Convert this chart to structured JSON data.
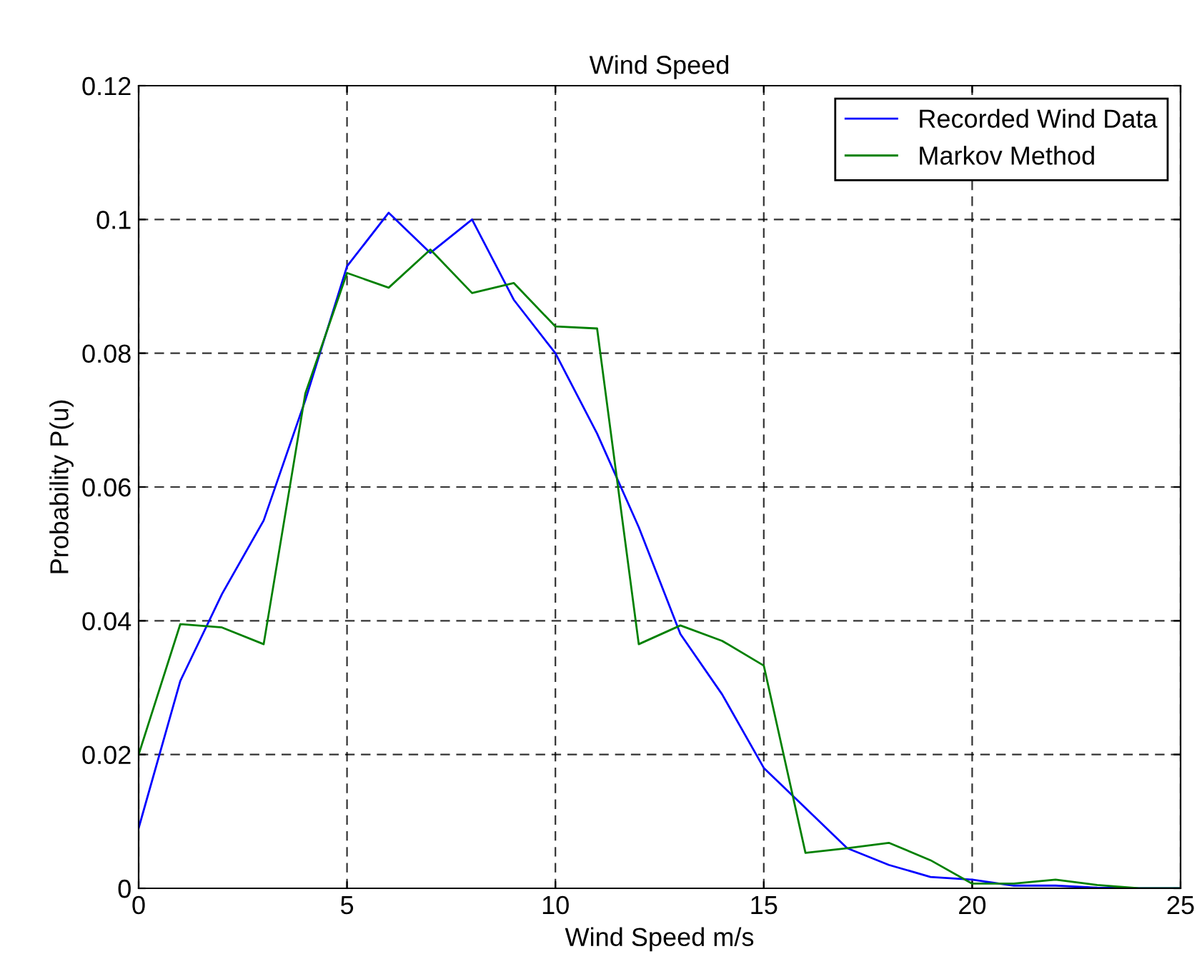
{
  "chart_data": {
    "type": "line",
    "title": "Wind Speed",
    "xlabel": "Wind Speed m/s",
    "ylabel": "Probability P(u)",
    "x": [
      0,
      1,
      2,
      3,
      4,
      5,
      6,
      7,
      8,
      9,
      10,
      11,
      12,
      13,
      14,
      15,
      16,
      17,
      18,
      19,
      20,
      21,
      22,
      23,
      24,
      25
    ],
    "series": [
      {
        "name": "Recorded Wind Data",
        "color": "#0000ff",
        "values": [
          0.009,
          0.031,
          0.044,
          0.055,
          0.073,
          0.093,
          0.101,
          0.095,
          0.1,
          0.088,
          0.08,
          0.068,
          0.054,
          0.038,
          0.029,
          0.018,
          0.012,
          0.006,
          0.0035,
          0.0017,
          0.0013,
          0.0004,
          0.0004,
          0.0001,
          0,
          0
        ]
      },
      {
        "name": "Markov Method",
        "color": "#008000",
        "values": [
          0.02,
          0.0395,
          0.039,
          0.0365,
          0.074,
          0.092,
          0.0898,
          0.0955,
          0.089,
          0.0905,
          0.084,
          0.0837,
          0.0365,
          0.0393,
          0.037,
          0.0333,
          0.0053,
          0.006,
          0.0068,
          0.0042,
          0.0007,
          0.0007,
          0.0013,
          0.0005,
          0,
          0
        ]
      }
    ],
    "xlim": [
      0,
      25
    ],
    "xticks": [
      0,
      5,
      10,
      15,
      20,
      25
    ],
    "ylim": [
      0,
      0.12
    ],
    "yticks": [
      0,
      0.02,
      0.04,
      0.06,
      0.08,
      0.1,
      0.12
    ],
    "grid": true,
    "legend": "top right",
    "line_style": "solid",
    "marker": "none"
  }
}
